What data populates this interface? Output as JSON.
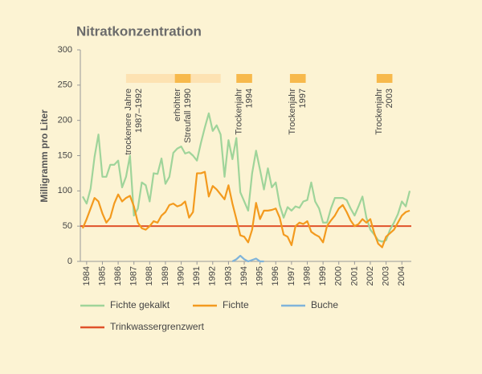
{
  "chart_data": {
    "type": "line",
    "title": "Nitratkonzentration",
    "ylabel": "Milligramm pro Liter",
    "xlim": [
      1983.6,
      2004.6
    ],
    "xticks": [
      1984,
      1985,
      1986,
      1987,
      1988,
      1989,
      1990,
      1991,
      1992,
      1993,
      1994,
      1995,
      1996,
      1997,
      1998,
      1999,
      2000,
      2001,
      2002,
      2003,
      2004
    ],
    "ylim": [
      0,
      300
    ],
    "yticks": [
      0,
      50,
      100,
      150,
      200,
      250,
      300
    ],
    "grid": false,
    "x": [
      1983.75,
      1984,
      1984.25,
      1984.5,
      1984.75,
      1985,
      1985.25,
      1985.5,
      1985.75,
      1986,
      1986.25,
      1986.5,
      1986.75,
      1987,
      1987.25,
      1987.5,
      1987.75,
      1988,
      1988.25,
      1988.5,
      1988.75,
      1989,
      1989.25,
      1989.5,
      1989.75,
      1990,
      1990.25,
      1990.5,
      1990.75,
      1991,
      1991.25,
      1991.5,
      1991.75,
      1992,
      1992.25,
      1992.5,
      1992.75,
      1993,
      1993.25,
      1993.5,
      1993.75,
      1994,
      1994.25,
      1994.5,
      1994.75,
      1995,
      1995.25,
      1995.5,
      1995.75,
      1996,
      1996.25,
      1996.5,
      1996.75,
      1997,
      1997.25,
      1997.5,
      1997.75,
      1998,
      1998.25,
      1998.5,
      1998.75,
      1999,
      1999.25,
      1999.5,
      1999.75,
      2000,
      2000.25,
      2000.5,
      2000.75,
      2001,
      2001.25,
      2001.5,
      2001.75,
      2002,
      2002.25,
      2002.5,
      2002.75,
      2003,
      2003.25,
      2003.5,
      2003.75,
      2004,
      2004.25,
      2004.5
    ],
    "series": [
      {
        "name": "Fichte gekalkt",
        "color": "#9fd49a",
        "values": [
          92,
          82,
          103,
          148,
          180,
          120,
          120,
          137,
          137,
          143,
          105,
          120,
          150,
          65,
          75,
          112,
          108,
          85,
          125,
          124,
          146,
          110,
          120,
          154,
          160,
          163,
          153,
          155,
          150,
          143,
          168,
          190,
          210,
          185,
          193,
          180,
          120,
          172,
          145,
          175,
          98,
          85,
          72,
          125,
          157,
          130,
          102,
          132,
          105,
          112,
          80,
          62,
          77,
          72,
          78,
          76,
          85,
          87,
          112,
          85,
          75,
          55,
          55,
          75,
          90,
          90,
          90,
          87,
          75,
          65,
          78,
          92,
          62,
          45,
          38,
          30,
          28,
          30,
          45,
          55,
          67,
          85,
          78,
          100
        ]
      },
      {
        "name": "Fichte",
        "color": "#f39a1e",
        "values": [
          47,
          60,
          75,
          90,
          85,
          68,
          55,
          62,
          82,
          95,
          85,
          90,
          93,
          78,
          55,
          47,
          45,
          50,
          57,
          55,
          65,
          70,
          80,
          82,
          78,
          80,
          85,
          62,
          70,
          125,
          125,
          127,
          92,
          107,
          102,
          95,
          88,
          108,
          82,
          60,
          37,
          35,
          27,
          45,
          83,
          60,
          72,
          72,
          73,
          75,
          62,
          38,
          35,
          23,
          50,
          55,
          53,
          57,
          42,
          38,
          35,
          27,
          50,
          58,
          65,
          75,
          80,
          70,
          58,
          50,
          53,
          60,
          55,
          60,
          40,
          25,
          20,
          35,
          40,
          45,
          55,
          65,
          70,
          72
        ]
      },
      {
        "name": "Buche",
        "color": "#7fb3da",
        "values": [
          null,
          null,
          null,
          null,
          null,
          null,
          null,
          null,
          null,
          null,
          null,
          null,
          null,
          null,
          null,
          null,
          null,
          null,
          null,
          null,
          null,
          null,
          null,
          null,
          null,
          null,
          null,
          null,
          null,
          null,
          null,
          null,
          null,
          null,
          null,
          null,
          null,
          null,
          0,
          3,
          8,
          3,
          0,
          2,
          4,
          0,
          0,
          null,
          null,
          null,
          null,
          null,
          null,
          null,
          null,
          null,
          null,
          null,
          null,
          null,
          null,
          null,
          null,
          null,
          null,
          null,
          null,
          null,
          null,
          null,
          null,
          null,
          null,
          null,
          null,
          null,
          null,
          null,
          null,
          null,
          null,
          null,
          null,
          null
        ]
      }
    ],
    "reference_lines": [
      {
        "name": "Trinkwassergrenzwert",
        "color": "#e0522a",
        "value": 50
      }
    ],
    "periods": [
      {
        "start": 1986.5,
        "end": 1992.5,
        "color": "#fde2b2",
        "label": [
          "trockenere Jahre",
          "1987–1992"
        ]
      },
      {
        "start": 1989.6,
        "end": 1990.6,
        "color": "#f7b94c",
        "label": [
          "erhöhter",
          "Streufall 1990"
        ]
      },
      {
        "start": 1993.5,
        "end": 1994.5,
        "color": "#f7b94c",
        "label": [
          "Trockenjahr",
          "1994"
        ]
      },
      {
        "start": 1996.9,
        "end": 1997.9,
        "color": "#f7b94c",
        "label": [
          "Trockenjahr",
          "1997"
        ]
      },
      {
        "start": 2002.4,
        "end": 2003.4,
        "color": "#f7b94c",
        "label": [
          "Trockenjahr",
          "2003"
        ]
      }
    ]
  }
}
